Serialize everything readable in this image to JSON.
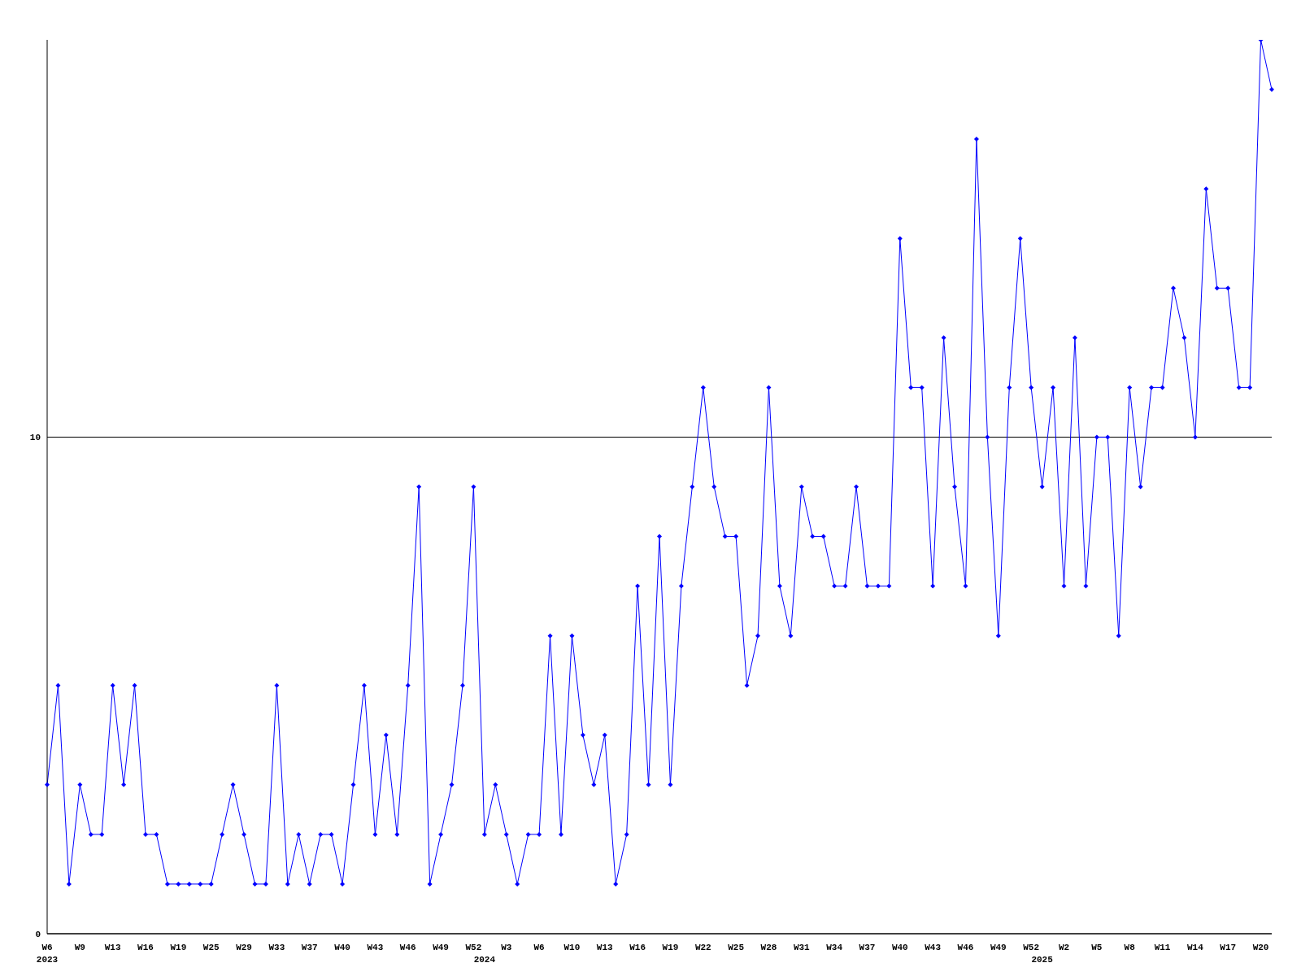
{
  "chart_data": {
    "type": "line",
    "categories": [
      "W6\n2023",
      null,
      null,
      "W9",
      null,
      null,
      "W13",
      null,
      null,
      "W16",
      null,
      null,
      "W19",
      null,
      null,
      "W25",
      null,
      null,
      "W29",
      null,
      null,
      "W33",
      null,
      null,
      "W37",
      null,
      null,
      "W40",
      null,
      null,
      "W43",
      null,
      null,
      "W46",
      null,
      null,
      "W49",
      null,
      null,
      "W52",
      "\n2024",
      null,
      "W3",
      null,
      null,
      "W6",
      null,
      null,
      "W10",
      null,
      null,
      "W13",
      null,
      null,
      "W16",
      null,
      null,
      "W19",
      null,
      null,
      "W22",
      null,
      null,
      "W25",
      null,
      null,
      "W28",
      null,
      null,
      "W31",
      null,
      null,
      "W34",
      null,
      null,
      "W37",
      null,
      null,
      "W40",
      null,
      null,
      "W43",
      null,
      null,
      "W46",
      null,
      null,
      "W49",
      null,
      null,
      "W52",
      "\n2025",
      null,
      "W2",
      null,
      null,
      "W5",
      null,
      null,
      "W8",
      null,
      null,
      "W11",
      null,
      null,
      "W14",
      null,
      null,
      "W17",
      null,
      null,
      "W20",
      null
    ],
    "series": [
      {
        "color": "#0000ff",
        "values": [
          3,
          5,
          1,
          3,
          2,
          2,
          5,
          3,
          5,
          2,
          2,
          1,
          1,
          1,
          1,
          1,
          2,
          3,
          2,
          1,
          1,
          5,
          1,
          2,
          1,
          2,
          2,
          1,
          3,
          5,
          2,
          4,
          2,
          5,
          9,
          1,
          2,
          3,
          5,
          9,
          2,
          3,
          2,
          1,
          2,
          2,
          6,
          2,
          6,
          4,
          3,
          4,
          1,
          2,
          7,
          3,
          8,
          3,
          7,
          9,
          11,
          9,
          8,
          8,
          5,
          6,
          11,
          7,
          6,
          9,
          8,
          8,
          7,
          7,
          9,
          7,
          7,
          7,
          14,
          11,
          11,
          7,
          12,
          9,
          7,
          16,
          10,
          6,
          11,
          14,
          11,
          9,
          11,
          7,
          12,
          7,
          10,
          10,
          6,
          11,
          9,
          11,
          11,
          13,
          12,
          10,
          15,
          13,
          13,
          11,
          11,
          18,
          17
        ]
      }
    ],
    "ylim": [
      0,
      18
    ],
    "yticks": [
      0,
      10
    ],
    "grid": "y",
    "marker": "diamond",
    "line_style": "solid"
  }
}
